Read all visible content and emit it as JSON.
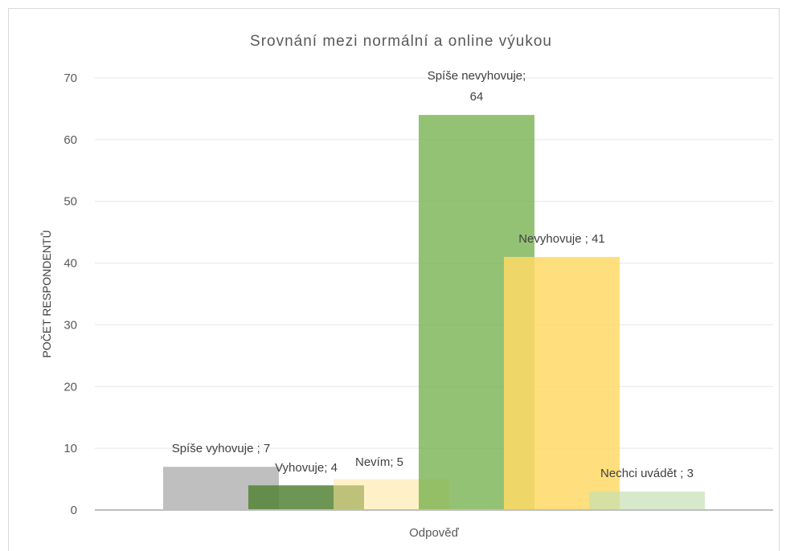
{
  "chart_data": {
    "type": "bar",
    "title": "Srovnání mezi normální a online výukou",
    "xlabel": "Odpověď",
    "ylabel": "POČET RESPONDENTŮ",
    "ylim": [
      0,
      70
    ],
    "yticks": [
      "0",
      "10",
      "20",
      "30",
      "40",
      "50",
      "60",
      "70"
    ],
    "grid": true,
    "legend": "none",
    "series": [
      {
        "category": "Spíše vyhovuje",
        "value": 7,
        "label_lines": [
          "Spíše vyhovuje ; 7"
        ],
        "color": "#bfbfbf"
      },
      {
        "category": "Vyhovuje",
        "value": 4,
        "label_lines": [
          "Vyhovuje; 4"
        ],
        "color": "#548235"
      },
      {
        "category": "Nevím",
        "value": 5,
        "label_lines": [
          "Nevím; 5"
        ],
        "color": "#ffe699"
      },
      {
        "category": "Spíše nevyhovuje",
        "value": 64,
        "label_lines": [
          "Spíše nevyhovuje;",
          "64"
        ],
        "color": "#70ad47"
      },
      {
        "category": "Nevyhovuje",
        "value": 41,
        "label_lines": [
          "Nevyhovuje ; 41"
        ],
        "color": "#ffd966"
      },
      {
        "category": "Nechci uvádět",
        "value": 3,
        "label_lines": [
          "Nechci uvádět ; 3"
        ],
        "color": "#c5e0b4"
      }
    ]
  }
}
